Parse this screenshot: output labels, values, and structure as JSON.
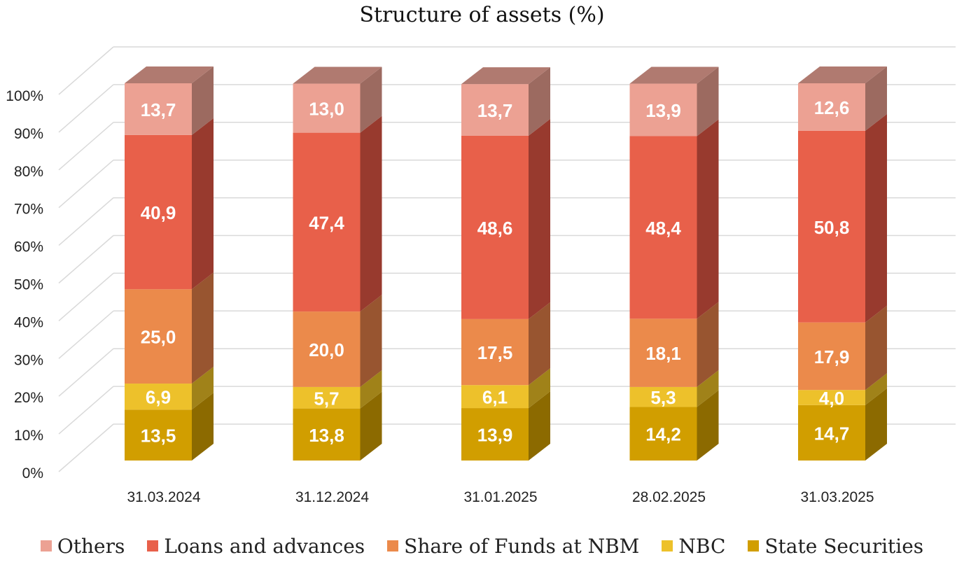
{
  "chart_data": {
    "type": "bar",
    "stacked": true,
    "three_d": true,
    "title": "Structure of assets (%)",
    "categories": [
      "31.03.2024",
      "31.12.2024",
      "31.01.2025",
      "28.02.2025",
      "31.03.2025"
    ],
    "y_ticks": [
      "0%",
      "10%",
      "20%",
      "30%",
      "40%",
      "50%",
      "60%",
      "70%",
      "80%",
      "90%",
      "100%"
    ],
    "ylim": [
      0,
      100
    ],
    "grid": true,
    "legend_position": "bottom",
    "series": [
      {
        "name": "State Securities",
        "color": "#D19E00",
        "side": "#8C6A00",
        "top": "#B08A00",
        "values": [
          13.5,
          13.8,
          13.9,
          14.2,
          14.7
        ],
        "labels": [
          "13,5",
          "13,8",
          "13,9",
          "14,2",
          "14,7"
        ]
      },
      {
        "name": "NBC",
        "color": "#EDC12B",
        "side": "#A08219",
        "top": "#C9A624",
        "values": [
          6.9,
          5.7,
          6.1,
          5.3,
          4.0
        ],
        "labels": [
          "6,9",
          "5,7",
          "6,1",
          "5,3",
          "4,0"
        ]
      },
      {
        "name": "Share of Funds at NBM",
        "color": "#EB8A4B",
        "side": "#985530",
        "top": "#C5733F",
        "values": [
          25.0,
          20.0,
          17.5,
          18.1,
          17.9
        ],
        "labels": [
          "25,0",
          "20,0",
          "17,5",
          "18,1",
          "17,9"
        ]
      },
      {
        "name": "Loans and advances",
        "color": "#E8604A",
        "side": "#983A2E",
        "top": "#C4513F",
        "values": [
          40.9,
          47.4,
          48.6,
          48.4,
          50.8
        ],
        "labels": [
          "40,9",
          "47,4",
          "48,6",
          "48,4",
          "50,8"
        ]
      },
      {
        "name": "Others",
        "color": "#ECA193",
        "side": "#9C6A60",
        "top": "#B07A70",
        "values": [
          13.7,
          13.0,
          13.7,
          13.9,
          12.6
        ],
        "labels": [
          "13,7",
          "13,0",
          "13,7",
          "13,9",
          "12,6"
        ]
      }
    ],
    "legend_order": [
      "Others",
      "Loans and advances",
      "Share of Funds at NBM",
      "NBC",
      "State Securities"
    ]
  }
}
